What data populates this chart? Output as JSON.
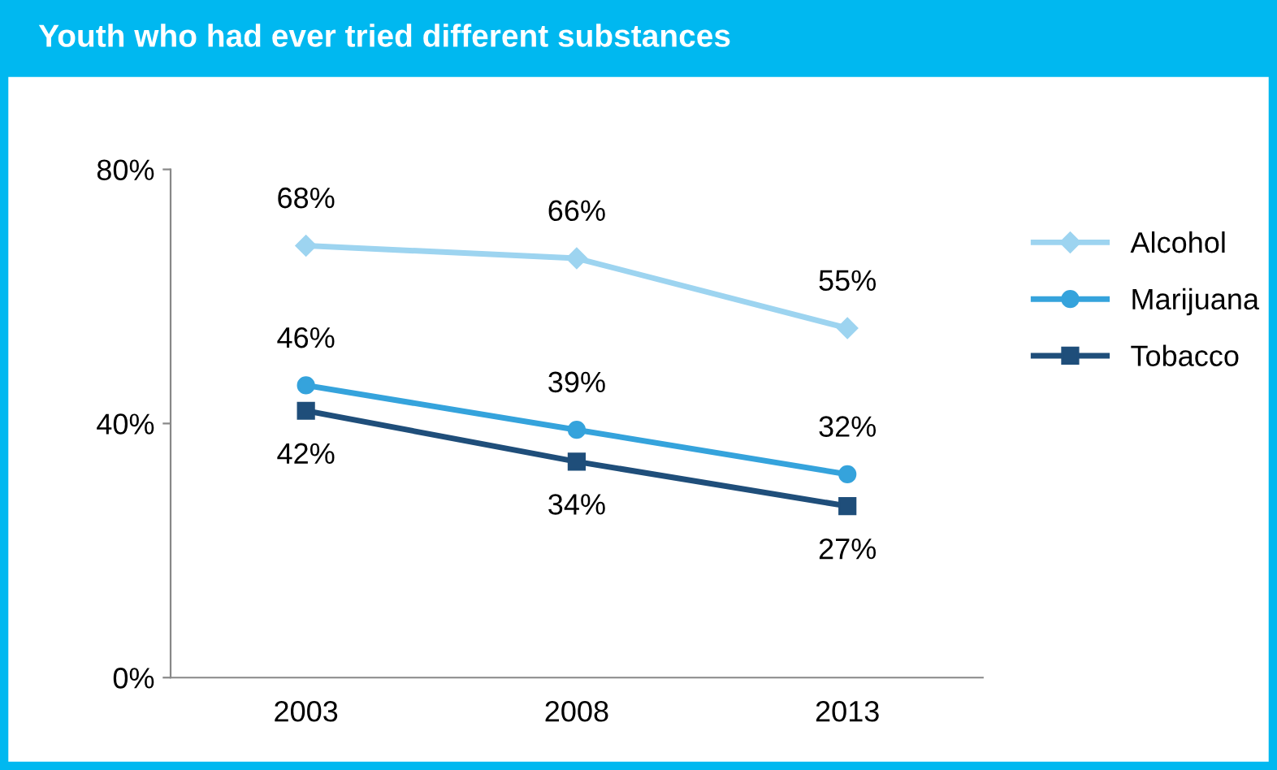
{
  "chart_data": {
    "type": "line",
    "title": "Youth who had ever tried different substances",
    "categories": [
      "2003",
      "2008",
      "2013"
    ],
    "series": [
      {
        "name": "Alcohol",
        "color": "#9dd4f0",
        "values": [
          68,
          66,
          55
        ],
        "value_labels": [
          "68%",
          "66%",
          "55%"
        ],
        "marker": "diamond"
      },
      {
        "name": "Marijuana",
        "color": "#35a3dc",
        "values": [
          46,
          39,
          32
        ],
        "value_labels": [
          "46%",
          "39%",
          "32%"
        ],
        "marker": "circle"
      },
      {
        "name": "Tobacco",
        "color": "#1f4e7a",
        "values": [
          42,
          34,
          27
        ],
        "value_labels": [
          "42%",
          "34%",
          "27%"
        ],
        "marker": "square"
      }
    ],
    "ylim": [
      0,
      80
    ],
    "yticks": [
      {
        "value": 0,
        "label": "0%"
      },
      {
        "value": 40,
        "label": "40%"
      },
      {
        "value": 80,
        "label": "80%"
      }
    ],
    "legend": "right",
    "grid": false
  }
}
